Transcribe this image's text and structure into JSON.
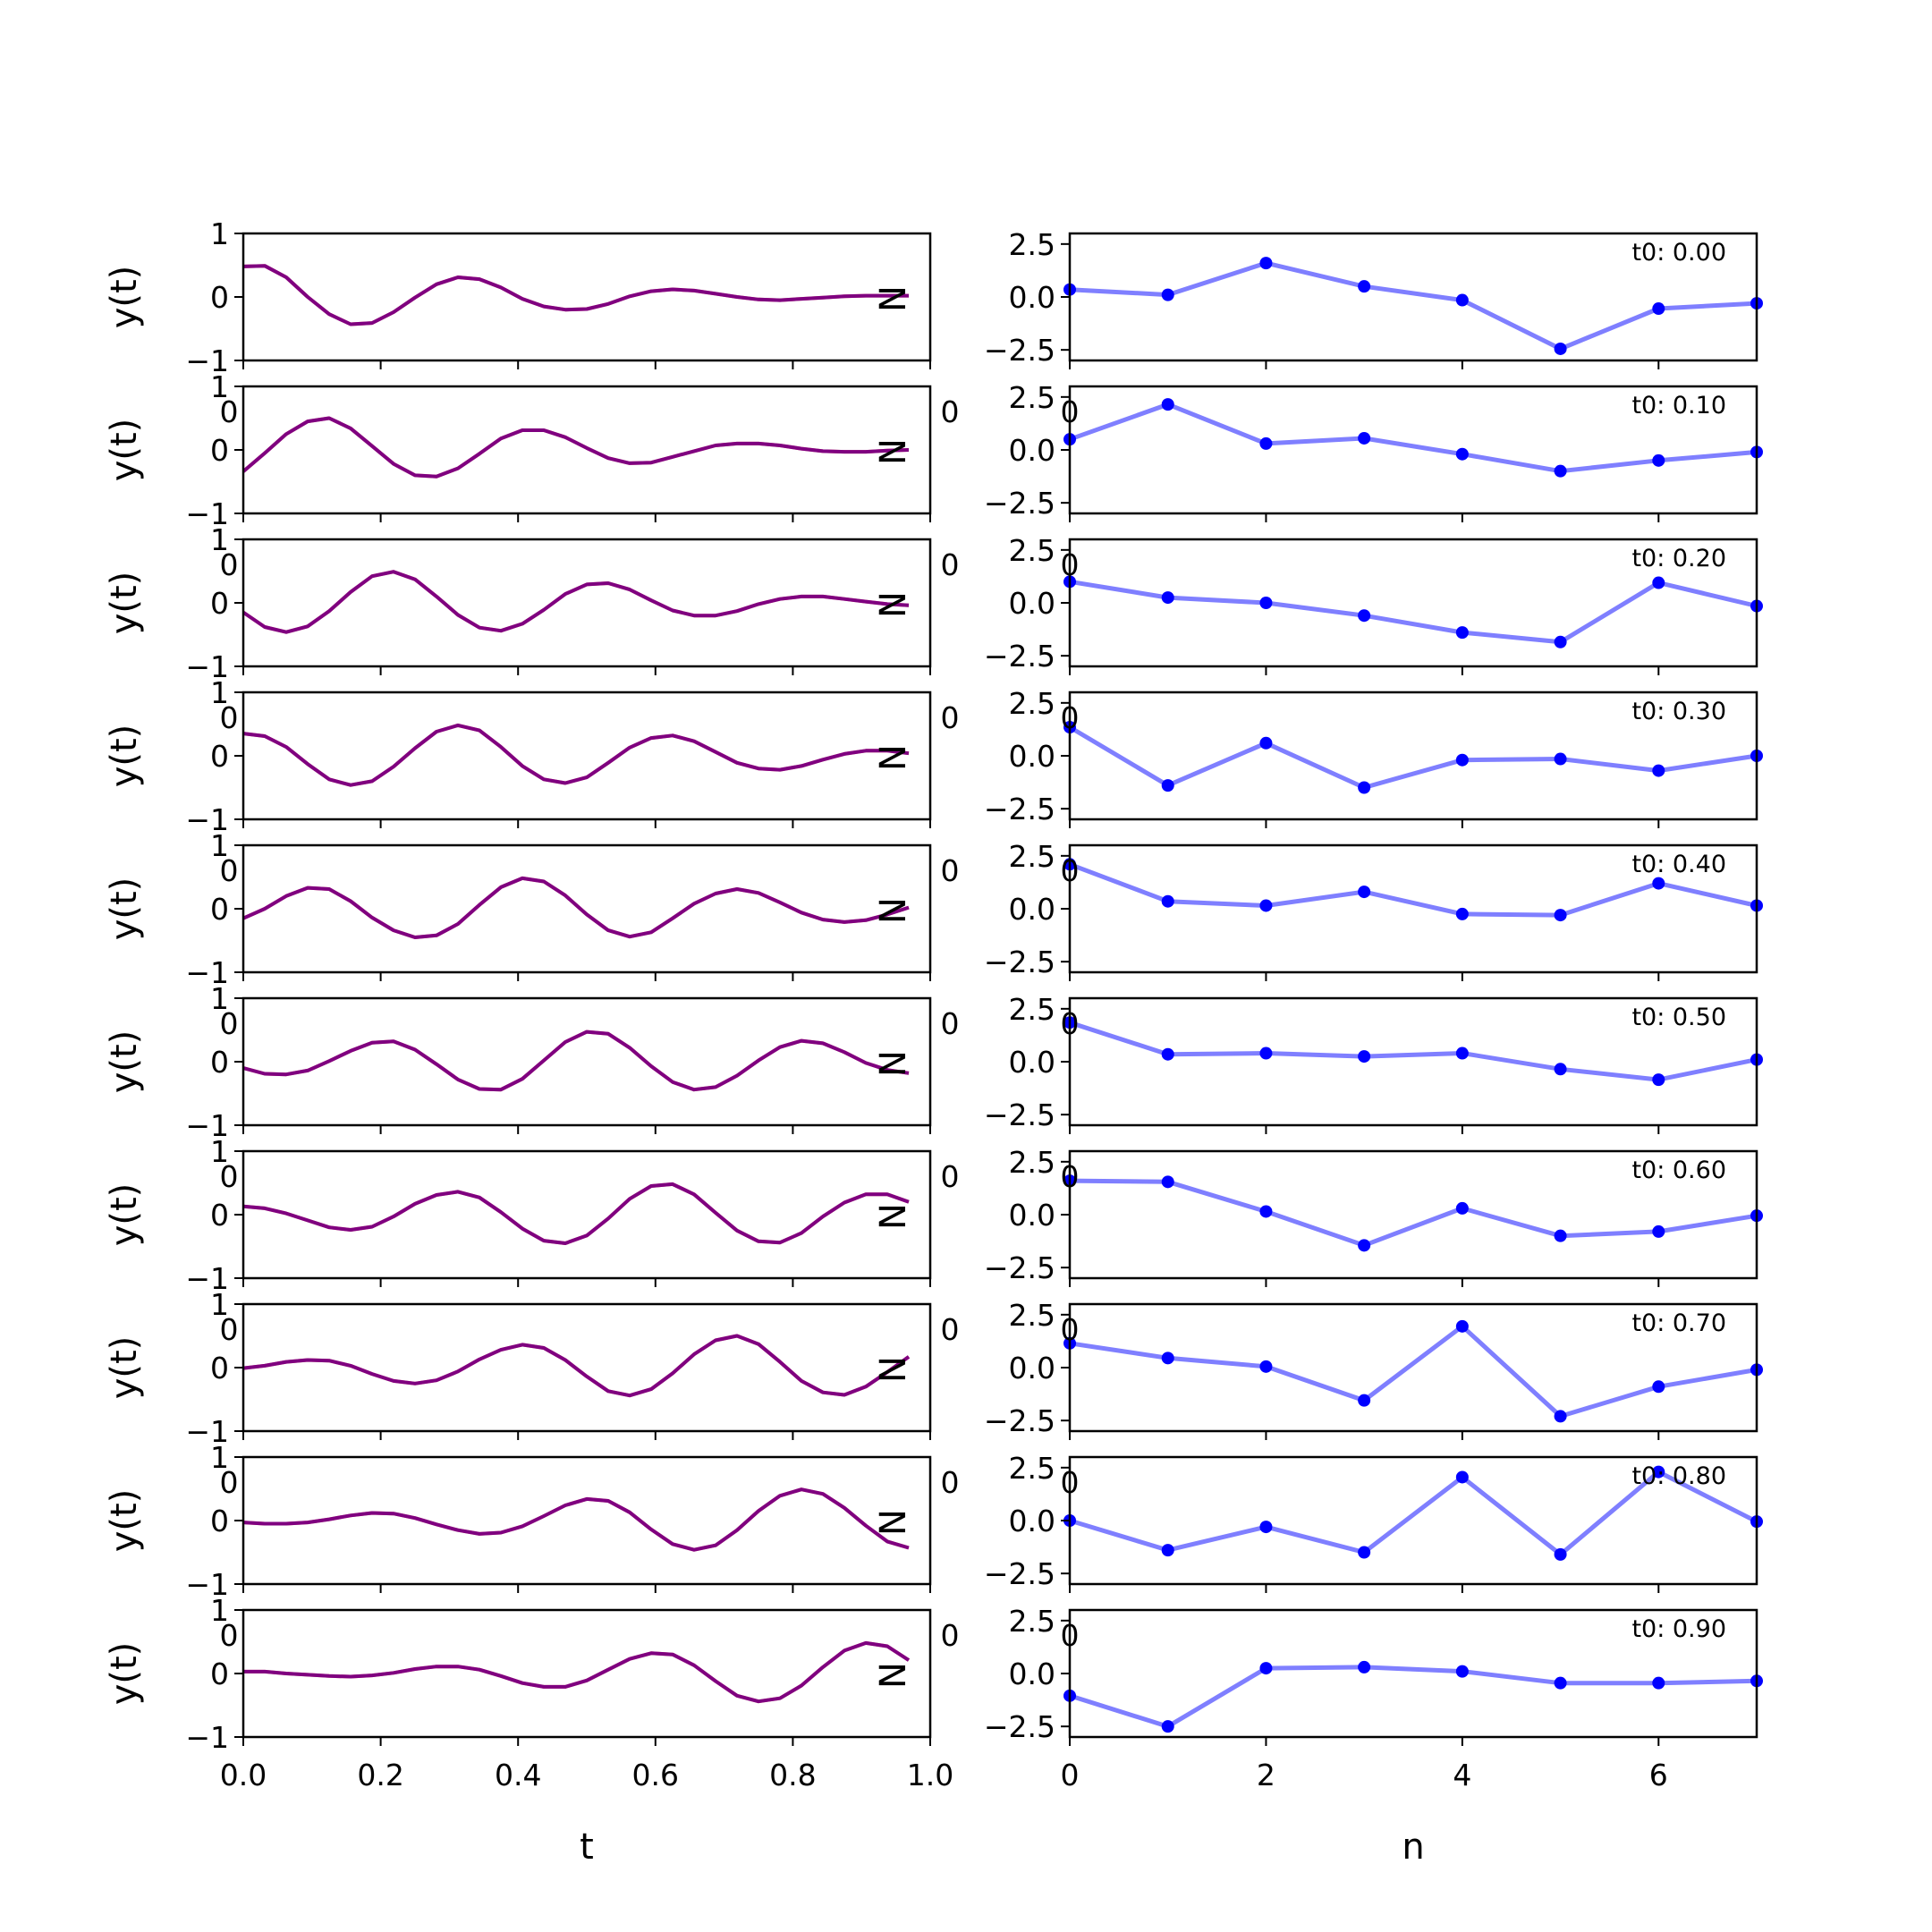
{
  "colors": {
    "signal_true": "#ff0000",
    "signal_fit": "#0000ff",
    "signal_overlap": "#800080",
    "coeff_line": "#7f7fff",
    "coeff_marker": "#0000ff"
  },
  "chart_data": [
    {
      "type": "line",
      "column": "left",
      "ylabel": "y(t)",
      "xlabel": "t",
      "xlim": [
        0,
        1
      ],
      "ylim": [
        -1,
        1
      ],
      "xticks": [
        0.0,
        0.2,
        0.4,
        0.6,
        0.8,
        1.0
      ],
      "xtick_labels": [
        "0.0",
        "0.2",
        "0.4",
        "0.6",
        "0.8",
        "1.0"
      ],
      "yticks": [
        -1,
        0,
        1
      ],
      "ytick_labels": [
        "−1",
        "0",
        "1"
      ],
      "stray_labels": {
        "left": "0",
        "right": "0",
        "overlay": "N"
      },
      "x": [
        0,
        0.03125,
        0.0625,
        0.09375,
        0.125,
        0.15625,
        0.1875,
        0.21875,
        0.25,
        0.28125,
        0.3125,
        0.34375,
        0.375,
        0.40625,
        0.4375,
        0.46875,
        0.5,
        0.53125,
        0.5625,
        0.59375,
        0.625,
        0.65625,
        0.6875,
        0.71875,
        0.75,
        0.78125,
        0.8125,
        0.84375,
        0.875,
        0.90625,
        0.9375,
        0.96875
      ],
      "panels": [
        {
          "t0": 0.0,
          "values": [
            0.48,
            0.49,
            0.31,
            0.0,
            -0.27,
            -0.43,
            -0.41,
            -0.24,
            -0.01,
            0.2,
            0.31,
            0.28,
            0.15,
            -0.03,
            -0.15,
            -0.2,
            -0.19,
            -0.11,
            0.01,
            0.09,
            0.12,
            0.1,
            0.05,
            0.0,
            -0.04,
            -0.05,
            -0.03,
            -0.01,
            0.01,
            0.02,
            0.02,
            0.02
          ]
        },
        {
          "t0": 0.1,
          "values": [
            -0.34,
            -0.05,
            0.25,
            0.45,
            0.5,
            0.34,
            0.06,
            -0.22,
            -0.4,
            -0.42,
            -0.29,
            -0.06,
            0.18,
            0.31,
            0.31,
            0.2,
            0.03,
            -0.13,
            -0.21,
            -0.2,
            -0.11,
            -0.02,
            0.07,
            0.1,
            0.1,
            0.07,
            0.02,
            -0.02,
            -0.03,
            -0.03,
            -0.01,
            0.0
          ]
        },
        {
          "t0": 0.2,
          "values": [
            -0.15,
            -0.38,
            -0.46,
            -0.37,
            -0.13,
            0.17,
            0.42,
            0.49,
            0.37,
            0.1,
            -0.19,
            -0.39,
            -0.44,
            -0.33,
            -0.11,
            0.14,
            0.29,
            0.31,
            0.21,
            0.04,
            -0.12,
            -0.2,
            -0.2,
            -0.13,
            -0.02,
            0.06,
            0.1,
            0.1,
            0.06,
            0.02,
            -0.02,
            -0.04
          ]
        },
        {
          "t0": 0.3,
          "values": [
            0.35,
            0.31,
            0.14,
            -0.13,
            -0.37,
            -0.46,
            -0.4,
            -0.17,
            0.12,
            0.38,
            0.48,
            0.4,
            0.14,
            -0.16,
            -0.37,
            -0.43,
            -0.34,
            -0.11,
            0.13,
            0.28,
            0.32,
            0.23,
            0.06,
            -0.11,
            -0.2,
            -0.22,
            -0.16,
            -0.06,
            0.03,
            0.08,
            0.08,
            0.04
          ]
        },
        {
          "t0": 0.4,
          "values": [
            -0.15,
            0.0,
            0.2,
            0.33,
            0.31,
            0.12,
            -0.14,
            -0.34,
            -0.45,
            -0.42,
            -0.24,
            0.06,
            0.34,
            0.48,
            0.43,
            0.21,
            -0.09,
            -0.34,
            -0.44,
            -0.37,
            -0.15,
            0.08,
            0.24,
            0.31,
            0.25,
            0.1,
            -0.06,
            -0.17,
            -0.21,
            -0.18,
            -0.09,
            0.02
          ]
        },
        {
          "t0": 0.5,
          "values": [
            -0.1,
            -0.19,
            -0.2,
            -0.14,
            0.01,
            0.17,
            0.3,
            0.32,
            0.19,
            -0.04,
            -0.28,
            -0.43,
            -0.44,
            -0.27,
            0.02,
            0.31,
            0.47,
            0.44,
            0.22,
            -0.07,
            -0.32,
            -0.44,
            -0.4,
            -0.22,
            0.02,
            0.23,
            0.33,
            0.29,
            0.15,
            -0.02,
            -0.13,
            -0.18
          ]
        },
        {
          "t0": 0.6,
          "values": [
            0.13,
            0.1,
            0.02,
            -0.09,
            -0.2,
            -0.24,
            -0.19,
            -0.03,
            0.17,
            0.31,
            0.36,
            0.27,
            0.04,
            -0.22,
            -0.41,
            -0.45,
            -0.33,
            -0.06,
            0.25,
            0.45,
            0.48,
            0.32,
            0.03,
            -0.25,
            -0.42,
            -0.44,
            -0.29,
            -0.03,
            0.19,
            0.32,
            0.32,
            0.2
          ]
        },
        {
          "t0": 0.7,
          "values": [
            -0.01,
            0.03,
            0.09,
            0.12,
            0.11,
            0.03,
            -0.1,
            -0.21,
            -0.25,
            -0.2,
            -0.06,
            0.13,
            0.28,
            0.36,
            0.31,
            0.12,
            -0.14,
            -0.37,
            -0.44,
            -0.34,
            -0.09,
            0.21,
            0.43,
            0.5,
            0.37,
            0.09,
            -0.21,
            -0.39,
            -0.43,
            -0.3,
            -0.07,
            0.17
          ]
        },
        {
          "t0": 0.8,
          "values": [
            -0.03,
            -0.05,
            -0.05,
            -0.03,
            0.02,
            0.08,
            0.12,
            0.11,
            0.04,
            -0.06,
            -0.15,
            -0.21,
            -0.19,
            -0.09,
            0.07,
            0.24,
            0.34,
            0.31,
            0.13,
            -0.14,
            -0.37,
            -0.46,
            -0.39,
            -0.15,
            0.15,
            0.39,
            0.49,
            0.42,
            0.2,
            -0.08,
            -0.33,
            -0.43
          ]
        },
        {
          "t0": 0.9,
          "values": [
            0.03,
            0.03,
            0.0,
            -0.02,
            -0.04,
            -0.05,
            -0.03,
            0.01,
            0.07,
            0.11,
            0.11,
            0.06,
            -0.04,
            -0.15,
            -0.21,
            -0.21,
            -0.11,
            0.06,
            0.23,
            0.32,
            0.3,
            0.13,
            -0.12,
            -0.35,
            -0.44,
            -0.39,
            -0.19,
            0.1,
            0.36,
            0.48,
            0.43,
            0.21
          ]
        }
      ]
    },
    {
      "type": "line",
      "column": "right",
      "xlabel": "n",
      "xlim": [
        0,
        7
      ],
      "ylim": [
        -3,
        3
      ],
      "xticks": [
        0,
        2,
        4,
        6
      ],
      "xtick_labels": [
        "0",
        "2",
        "4",
        "6"
      ],
      "yticks": [
        -2.5,
        0,
        2.5
      ],
      "ytick_labels": [
        "−2.5",
        "0.0",
        "2.5"
      ],
      "stray_labels": {
        "left": "0"
      },
      "x": [
        0,
        1,
        2,
        3,
        4,
        5,
        6,
        7
      ],
      "panels": [
        {
          "annotation": "t0: 0.00",
          "values": [
            0.35,
            0.1,
            1.6,
            0.5,
            -0.15,
            -2.45,
            -0.55,
            -0.3
          ]
        },
        {
          "annotation": "t0: 0.10",
          "values": [
            0.5,
            2.15,
            0.3,
            0.55,
            -0.2,
            -1.0,
            -0.5,
            -0.1
          ]
        },
        {
          "annotation": "t0: 0.20",
          "values": [
            1.0,
            0.25,
            0.0,
            -0.6,
            -1.4,
            -1.85,
            0.95,
            -0.15
          ]
        },
        {
          "annotation": "t0: 0.30",
          "values": [
            1.35,
            -1.4,
            0.6,
            -1.5,
            -0.2,
            -0.15,
            -0.7,
            0.0
          ]
        },
        {
          "annotation": "t0: 0.40",
          "values": [
            2.1,
            0.35,
            0.15,
            0.8,
            -0.25,
            -0.3,
            1.2,
            0.15
          ]
        },
        {
          "annotation": "t0: 0.50",
          "values": [
            1.85,
            0.35,
            0.4,
            0.25,
            0.4,
            -0.35,
            -0.85,
            0.1
          ]
        },
        {
          "annotation": "t0: 0.60",
          "values": [
            1.6,
            1.55,
            0.15,
            -1.45,
            0.3,
            -1.0,
            -0.8,
            -0.05
          ]
        },
        {
          "annotation": "t0: 0.70",
          "values": [
            1.15,
            0.45,
            0.05,
            -1.55,
            1.95,
            -2.3,
            -0.9,
            -0.1
          ]
        },
        {
          "annotation": "t0: 0.80",
          "values": [
            0.0,
            -1.4,
            -0.3,
            -1.5,
            2.05,
            -1.6,
            2.3,
            -0.05
          ]
        },
        {
          "annotation": "t0: 0.90",
          "values": [
            -1.05,
            -2.5,
            0.25,
            0.3,
            0.1,
            -0.45,
            -0.45,
            -0.35
          ]
        }
      ]
    }
  ]
}
